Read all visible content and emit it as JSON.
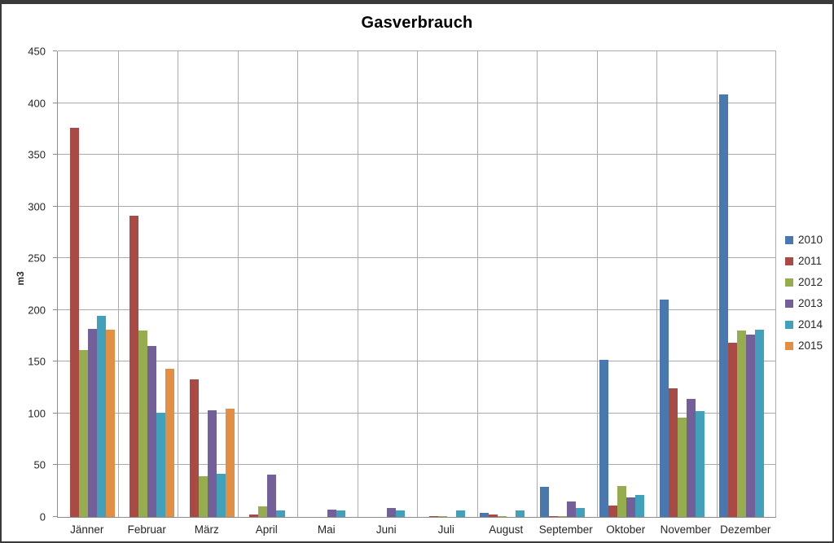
{
  "window": {
    "background": "#ffffff",
    "border_color": "#3a3a3a"
  },
  "chart_data": {
    "type": "bar",
    "title": "Gasverbrauch",
    "xlabel": "",
    "ylabel": "m3",
    "ylim": [
      0,
      450
    ],
    "ytick_step": 50,
    "yticks": [
      0,
      50,
      100,
      150,
      200,
      250,
      300,
      350,
      400,
      450
    ],
    "grid": true,
    "legend_position": "right",
    "gridline_color": "#ababab",
    "axis_line_color": "#8c8c8c",
    "categories": [
      "Jänner",
      "Februar",
      "März",
      "April",
      "Mai",
      "Juni",
      "Juli",
      "August",
      "September",
      "Oktober",
      "November",
      "Dezember"
    ],
    "series": [
      {
        "name": "2010",
        "color": "#4878ae",
        "values": [
          0,
          0,
          0,
          0,
          0,
          0,
          0,
          4,
          29,
          152,
          210,
          408
        ]
      },
      {
        "name": "2011",
        "color": "#a94a44",
        "values": [
          376,
          291,
          133,
          2,
          0,
          0,
          1,
          2,
          1,
          11,
          124,
          168
        ]
      },
      {
        "name": "2012",
        "color": "#95ad4f",
        "values": [
          161,
          180,
          39,
          10,
          0,
          0,
          1,
          1,
          1,
          30,
          96,
          180
        ]
      },
      {
        "name": "2013",
        "color": "#73609b",
        "values": [
          182,
          165,
          103,
          41,
          7,
          9,
          0,
          0,
          15,
          19,
          114,
          176
        ]
      },
      {
        "name": "2014",
        "color": "#41a0ba",
        "values": [
          194,
          101,
          42,
          6,
          6,
          6,
          6,
          6,
          9,
          21,
          102,
          181
        ]
      },
      {
        "name": "2015",
        "color": "#e28f43",
        "values": [
          181,
          143,
          105,
          0,
          0,
          0,
          0,
          0,
          0,
          0,
          0,
          0
        ]
      }
    ]
  }
}
